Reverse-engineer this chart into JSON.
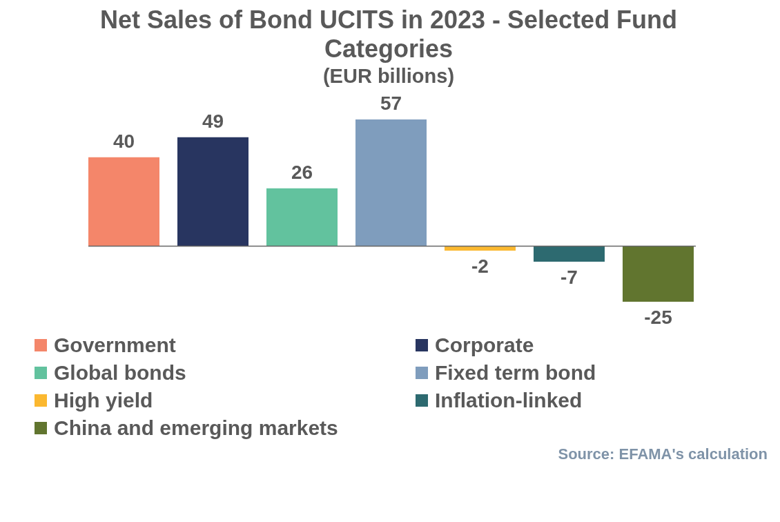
{
  "chart_data": {
    "type": "bar",
    "title": "Net Sales of Bond UCITS in 2023 - Selected Fund Categories",
    "subtitle": "(EUR billions)",
    "categories": [
      null
    ],
    "data_labels": true,
    "legend": "bottom",
    "series": [
      {
        "name": "Government",
        "color": "#f4866a",
        "values": [
          40
        ]
      },
      {
        "name": "Corporate",
        "color": "#283560",
        "values": [
          49
        ]
      },
      {
        "name": "Global bonds",
        "color": "#62c29e",
        "values": [
          26
        ]
      },
      {
        "name": "Fixed term bond",
        "color": "#7f9dbd",
        "values": [
          57
        ]
      },
      {
        "name": "High yield",
        "color": "#fbb830",
        "values": [
          -2
        ]
      },
      {
        "name": "Inflation-linked",
        "color": "#2d6a70",
        "values": [
          -7
        ]
      },
      {
        "name": "China and emerging markets",
        "color": "#61752f",
        "values": [
          -25
        ]
      }
    ],
    "annotations": [
      "Source: EFAMA's calculation"
    ]
  }
}
